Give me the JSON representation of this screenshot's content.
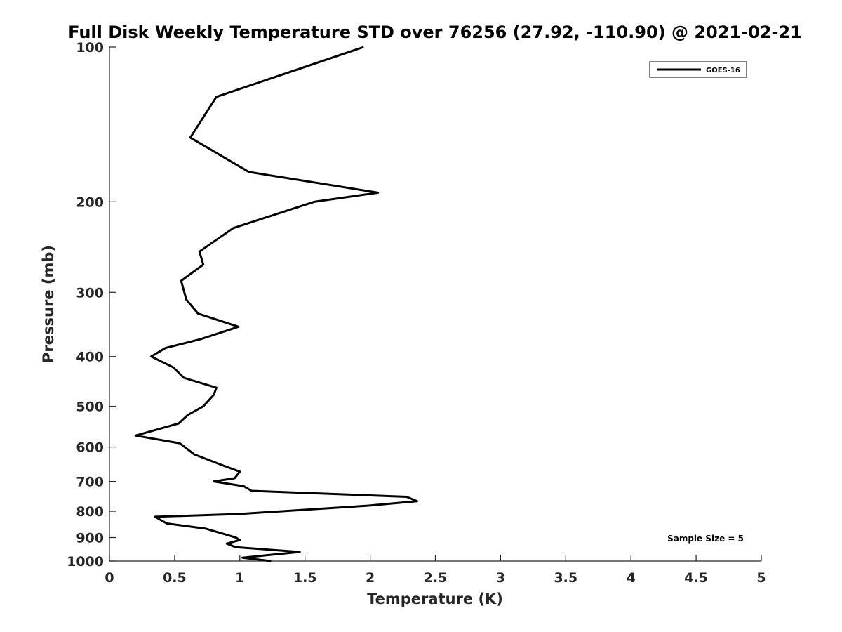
{
  "chart_data": {
    "type": "line",
    "title": "Full Disk Weekly Temperature STD over 76256 (27.92, -110.90) @ 2021-02-21",
    "xlabel": "Temperature (K)",
    "ylabel": "Pressure (mb)",
    "xlim": [
      0,
      5
    ],
    "ylim": [
      100,
      1000
    ],
    "yscale": "log",
    "yreversed": true,
    "grid": false,
    "x_ticks": [
      0,
      0.5,
      1,
      1.5,
      2,
      2.5,
      3,
      3.5,
      4,
      4.5,
      5
    ],
    "x_tick_labels": [
      "0",
      "0.5",
      "1",
      "1.5",
      "2",
      "2.5",
      "3",
      "3.5",
      "4",
      "4.5",
      "5"
    ],
    "y_ticks": [
      100,
      200,
      300,
      400,
      500,
      600,
      700,
      800,
      900,
      1000
    ],
    "y_tick_labels": [
      "100",
      "200",
      "300",
      "400",
      "500",
      "600",
      "700",
      "800",
      "900",
      "1000"
    ],
    "legend": {
      "position": "top-right",
      "entries": [
        "GOES-16"
      ]
    },
    "annotation": "Sample Size = 5",
    "series": [
      {
        "name": "GOES-16",
        "color": "#000000",
        "points": [
          [
            1.95,
            100
          ],
          [
            0.82,
            125
          ],
          [
            0.62,
            150
          ],
          [
            1.07,
            175
          ],
          [
            2.06,
            192
          ],
          [
            1.57,
            200
          ],
          [
            0.95,
            225
          ],
          [
            0.69,
            250
          ],
          [
            0.72,
            265
          ],
          [
            0.55,
            285
          ],
          [
            0.59,
            310
          ],
          [
            0.68,
            330
          ],
          [
            0.99,
            350
          ],
          [
            0.7,
            370
          ],
          [
            0.43,
            385
          ],
          [
            0.32,
            400
          ],
          [
            0.49,
            420
          ],
          [
            0.57,
            440
          ],
          [
            0.82,
            460
          ],
          [
            0.8,
            475
          ],
          [
            0.72,
            500
          ],
          [
            0.6,
            520
          ],
          [
            0.53,
            540
          ],
          [
            0.2,
            570
          ],
          [
            0.54,
            590
          ],
          [
            0.65,
            620
          ],
          [
            0.86,
            650
          ],
          [
            1.0,
            670
          ],
          [
            0.96,
            690
          ],
          [
            0.8,
            700
          ],
          [
            1.03,
            715
          ],
          [
            1.09,
            730
          ],
          [
            2.28,
            750
          ],
          [
            2.36,
            765
          ],
          [
            1.99,
            780
          ],
          [
            0.99,
            810
          ],
          [
            0.35,
            820
          ],
          [
            0.44,
            845
          ],
          [
            0.74,
            865
          ],
          [
            0.97,
            900
          ],
          [
            1.0,
            910
          ],
          [
            0.9,
            925
          ],
          [
            0.97,
            940
          ],
          [
            1.46,
            960
          ],
          [
            1.02,
            985
          ],
          [
            1.24,
            1000
          ]
        ]
      }
    ]
  }
}
